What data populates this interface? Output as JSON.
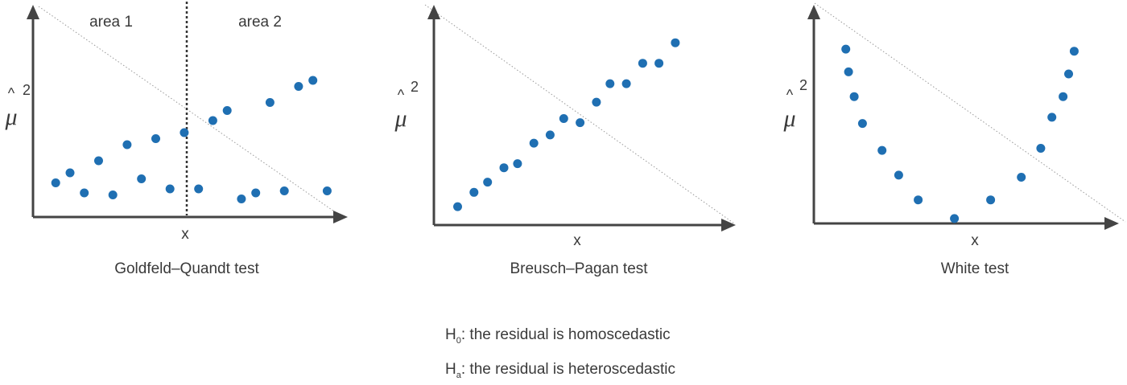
{
  "panels": [
    {
      "caption": "Goldfeld–Quandt test",
      "x_label": "x",
      "y_label": {
        "symbol": "μ",
        "accent": "^",
        "superscript": "2"
      },
      "regions": [
        "area 1",
        "area 2"
      ],
      "chart_data": {
        "type": "scatter",
        "xlim": [
          0,
          100
        ],
        "ylim": [
          0,
          100
        ],
        "split_x": 50,
        "points": [
          [
            4,
            17
          ],
          [
            9,
            22
          ],
          [
            14,
            12
          ],
          [
            19,
            28
          ],
          [
            24,
            11
          ],
          [
            29,
            36
          ],
          [
            34,
            19
          ],
          [
            39,
            39
          ],
          [
            44,
            14
          ],
          [
            49,
            42
          ],
          [
            54,
            14
          ],
          [
            59,
            48
          ],
          [
            64,
            53
          ],
          [
            69,
            9
          ],
          [
            74,
            12
          ],
          [
            79,
            57
          ],
          [
            84,
            13
          ],
          [
            89,
            65
          ],
          [
            94,
            68
          ],
          [
            99,
            13
          ]
        ]
      }
    },
    {
      "caption": "Breusch–Pagan test",
      "x_label": "x",
      "y_label": {
        "symbol": "μ",
        "accent": "^",
        "superscript": "2"
      },
      "chart_data": {
        "type": "scatter",
        "xlim": [
          0,
          100
        ],
        "ylim": [
          0,
          100
        ],
        "points": [
          [
            4,
            7
          ],
          [
            10,
            14
          ],
          [
            15,
            19
          ],
          [
            21,
            26
          ],
          [
            26,
            28
          ],
          [
            32,
            38
          ],
          [
            38,
            42
          ],
          [
            43,
            50
          ],
          [
            49,
            48
          ],
          [
            55,
            58
          ],
          [
            60,
            67
          ],
          [
            66,
            67
          ],
          [
            72,
            77
          ],
          [
            78,
            77
          ],
          [
            84,
            87
          ]
        ]
      }
    },
    {
      "caption": "White test",
      "x_label": "x",
      "y_label": {
        "symbol": "μ",
        "accent": "^",
        "superscript": "2"
      },
      "chart_data": {
        "type": "scatter",
        "xlim": [
          0,
          100
        ],
        "ylim": [
          0,
          100
        ],
        "points": [
          [
            8,
            84
          ],
          [
            9,
            73
          ],
          [
            11,
            61
          ],
          [
            14,
            48
          ],
          [
            21,
            35
          ],
          [
            27,
            23
          ],
          [
            34,
            11
          ],
          [
            47,
            2
          ],
          [
            60,
            11
          ],
          [
            71,
            22
          ],
          [
            78,
            36
          ],
          [
            82,
            51
          ],
          [
            86,
            61
          ],
          [
            88,
            72
          ],
          [
            90,
            83
          ]
        ]
      }
    }
  ],
  "hypotheses": [
    {
      "symbol": "H",
      "subscript": "0",
      "text": ": the residual is homoscedastic"
    },
    {
      "symbol": "H",
      "subscript": "a",
      "text": ": the residual is heteroscedastic"
    }
  ]
}
